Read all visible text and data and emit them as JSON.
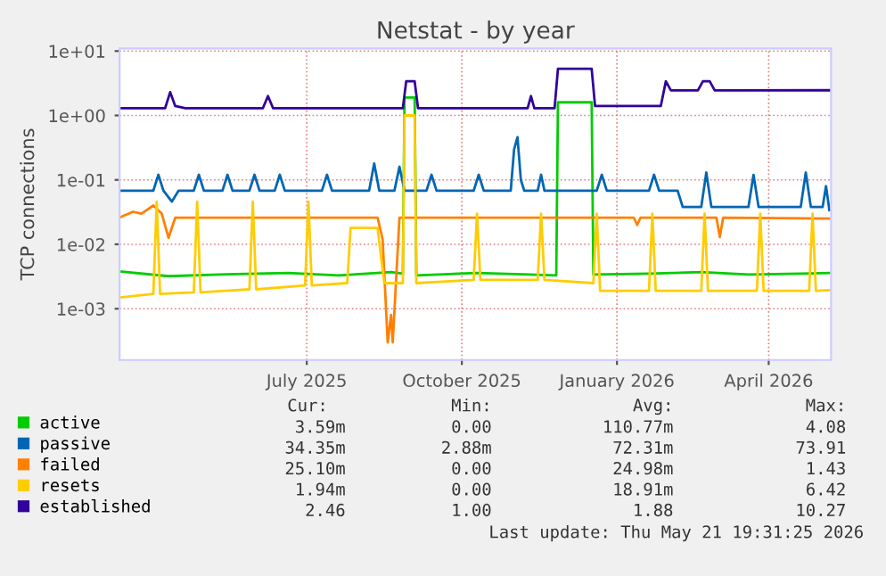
{
  "chart_data": {
    "type": "line",
    "title": "Netstat - by year",
    "ylabel": "TCP connections",
    "log": "y",
    "grid": true,
    "legend": "bottom",
    "line_style": "solid",
    "marker": "none",
    "ylim": [
      0.00016,
      11
    ],
    "yticks": [
      {
        "value": 0.001,
        "label": "1e-03"
      },
      {
        "value": 0.01,
        "label": "1e-02"
      },
      {
        "value": 0.1,
        "label": "1e-01"
      },
      {
        "value": 1,
        "label": "1e+00"
      },
      {
        "value": 10,
        "label": "1e+01"
      }
    ],
    "xlim": [
      "2025-03-12",
      "2026-05-08"
    ],
    "xticks": [
      {
        "value": "2025-07-01",
        "label": "July 2025"
      },
      {
        "value": "2025-10-01",
        "label": "October 2025"
      },
      {
        "value": "2026-01-01",
        "label": "January 2026"
      },
      {
        "value": "2026-04-01",
        "label": "April 2026"
      }
    ],
    "series": [
      {
        "name": "active",
        "color": "#00cc00",
        "x": [
          "2025-03-12",
          "2025-04-10",
          "2025-05-10",
          "2025-06-20",
          "2025-07-20",
          "2025-08-20",
          "2025-08-27",
          "2025-08-28",
          "2025-09-03",
          "2025-09-04",
          "2025-10-10",
          "2025-11-10",
          "2025-11-26",
          "2025-11-27",
          "2025-12-17",
          "2025-12-18",
          "2026-01-20",
          "2026-02-20",
          "2026-03-20",
          "2026-04-20",
          "2026-05-07"
        ],
        "values": [
          0.0038,
          0.0032,
          0.0034,
          0.0036,
          0.0033,
          0.0037,
          0.0035,
          1.9,
          1.9,
          0.0033,
          0.0036,
          0.0034,
          0.0033,
          1.6,
          1.6,
          0.0034,
          0.0035,
          0.0037,
          0.0034,
          0.0035,
          0.0036
        ]
      },
      {
        "name": "passive",
        "color": "#0066b3",
        "x": [
          "2025-03-12",
          "2025-04-01",
          "2025-04-04",
          "2025-04-07",
          "2025-04-12",
          "2025-04-16",
          "2025-04-25",
          "2025-04-28",
          "2025-05-01",
          "2025-05-12",
          "2025-05-15",
          "2025-05-18",
          "2025-05-28",
          "2025-05-31",
          "2025-06-03",
          "2025-06-12",
          "2025-06-15",
          "2025-06-18",
          "2025-07-10",
          "2025-07-13",
          "2025-07-16",
          "2025-08-07",
          "2025-08-10",
          "2025-08-13",
          "2025-08-22",
          "2025-08-25",
          "2025-08-28",
          "2025-09-10",
          "2025-09-13",
          "2025-09-16",
          "2025-10-08",
          "2025-10-11",
          "2025-10-14",
          "2025-10-30",
          "2025-11-01",
          "2025-11-03",
          "2025-11-05",
          "2025-11-07",
          "2025-11-15",
          "2025-11-17",
          "2025-11-19",
          "2025-12-20",
          "2025-12-23",
          "2025-12-26",
          "2026-01-20",
          "2026-01-23",
          "2026-01-26",
          "2026-02-06",
          "2026-02-09",
          "2026-02-20",
          "2026-02-23",
          "2026-02-26",
          "2026-03-20",
          "2026-03-23",
          "2026-03-26",
          "2026-04-20",
          "2026-04-23",
          "2026-04-26",
          "2026-05-03",
          "2026-05-05",
          "2026-05-07"
        ],
        "values": [
          0.068,
          0.068,
          0.12,
          0.068,
          0.046,
          0.068,
          0.068,
          0.12,
          0.068,
          0.068,
          0.12,
          0.068,
          0.068,
          0.12,
          0.068,
          0.068,
          0.12,
          0.068,
          0.068,
          0.12,
          0.068,
          0.068,
          0.18,
          0.068,
          0.068,
          0.16,
          0.068,
          0.068,
          0.12,
          0.068,
          0.068,
          0.12,
          0.068,
          0.068,
          0.3,
          0.46,
          0.1,
          0.068,
          0.068,
          0.12,
          0.068,
          0.068,
          0.12,
          0.068,
          0.068,
          0.12,
          0.068,
          0.068,
          0.038,
          0.038,
          0.13,
          0.038,
          0.038,
          0.12,
          0.038,
          0.038,
          0.13,
          0.038,
          0.038,
          0.08,
          0.034
        ]
      },
      {
        "name": "failed",
        "color": "#ff8000",
        "x": [
          "2025-03-12",
          "2025-03-20",
          "2025-03-25",
          "2025-04-01",
          "2025-04-06",
          "2025-04-10",
          "2025-04-14",
          "2025-06-01",
          "2025-08-12",
          "2025-08-15",
          "2025-08-18",
          "2025-08-20",
          "2025-08-21",
          "2025-08-25",
          "2026-01-11",
          "2026-01-13",
          "2026-01-15",
          "2026-03-01",
          "2026-03-03",
          "2026-03-05",
          "2026-05-07"
        ],
        "values": [
          0.026,
          0.032,
          0.03,
          0.04,
          0.03,
          0.0126,
          0.026,
          0.026,
          0.026,
          0.012,
          0.0003,
          0.0008,
          0.0003,
          0.026,
          0.026,
          0.02,
          0.026,
          0.026,
          0.013,
          0.026,
          0.0251
        ]
      },
      {
        "name": "resets",
        "color": "#ffcc00",
        "x": [
          "2025-03-12",
          "2025-04-01",
          "2025-04-03",
          "2025-04-05",
          "2025-04-25",
          "2025-04-27",
          "2025-04-29",
          "2025-05-28",
          "2025-05-30",
          "2025-06-01",
          "2025-06-30",
          "2025-07-02",
          "2025-07-04",
          "2025-07-25",
          "2025-07-27",
          "2025-08-12",
          "2025-08-16",
          "2025-08-27",
          "2025-08-28",
          "2025-09-03",
          "2025-09-04",
          "2025-10-08",
          "2025-10-10",
          "2025-10-12",
          "2025-11-15",
          "2025-11-17",
          "2025-11-19",
          "2025-12-18",
          "2025-12-20",
          "2025-12-22",
          "2026-01-20",
          "2026-01-22",
          "2026-01-24",
          "2026-02-20",
          "2026-02-22",
          "2026-02-24",
          "2026-03-25",
          "2026-03-27",
          "2026-03-29",
          "2026-04-25",
          "2026-04-27",
          "2026-04-29",
          "2026-05-07"
        ],
        "values": [
          0.0015,
          0.0017,
          0.046,
          0.0017,
          0.0018,
          0.046,
          0.0018,
          0.002,
          0.046,
          0.002,
          0.0023,
          0.046,
          0.0023,
          0.0025,
          0.018,
          0.018,
          0.0025,
          0.0025,
          1.0,
          1.0,
          0.0025,
          0.0028,
          0.03,
          0.0028,
          0.0028,
          0.03,
          0.0028,
          0.0025,
          0.03,
          0.0019,
          0.0019,
          0.03,
          0.0019,
          0.0019,
          0.03,
          0.0019,
          0.0019,
          0.03,
          0.0019,
          0.0019,
          0.03,
          0.0019,
          0.00194
        ]
      },
      {
        "name": "established",
        "color": "#330099",
        "x": [
          "2025-03-12",
          "2025-04-08",
          "2025-04-11",
          "2025-04-14",
          "2025-04-20",
          "2025-06-05",
          "2025-06-08",
          "2025-06-11",
          "2025-08-27",
          "2025-08-29",
          "2025-09-03",
          "2025-09-05",
          "2025-11-09",
          "2025-11-11",
          "2025-11-13",
          "2025-11-25",
          "2025-11-27",
          "2025-12-17",
          "2025-12-19",
          "2026-01-27",
          "2026-01-30",
          "2026-02-02",
          "2026-02-18",
          "2026-02-21",
          "2026-02-25",
          "2026-02-28",
          "2026-05-07"
        ],
        "values": [
          1.3,
          1.3,
          2.3,
          1.4,
          1.3,
          1.3,
          2.0,
          1.3,
          1.3,
          3.4,
          3.4,
          1.3,
          1.3,
          2.0,
          1.3,
          1.3,
          5.3,
          5.3,
          1.4,
          1.4,
          3.4,
          2.45,
          2.45,
          3.4,
          3.4,
          2.45,
          2.46
        ]
      }
    ],
    "annotations": [
      "Cur:",
      "Min:",
      "Avg:",
      "Max:",
      "3.59m",
      "0.00",
      "110.77m",
      "4.08",
      "34.35m",
      "2.88m",
      "72.31m",
      "73.91",
      "25.10m",
      "0.00",
      "24.98m",
      "1.43",
      "1.94m",
      "0.00",
      "18.91m",
      "6.42",
      "2.46",
      "1.00",
      "1.88",
      "10.27",
      "Last update: Thu May 21 19:31:25 2026"
    ]
  }
}
